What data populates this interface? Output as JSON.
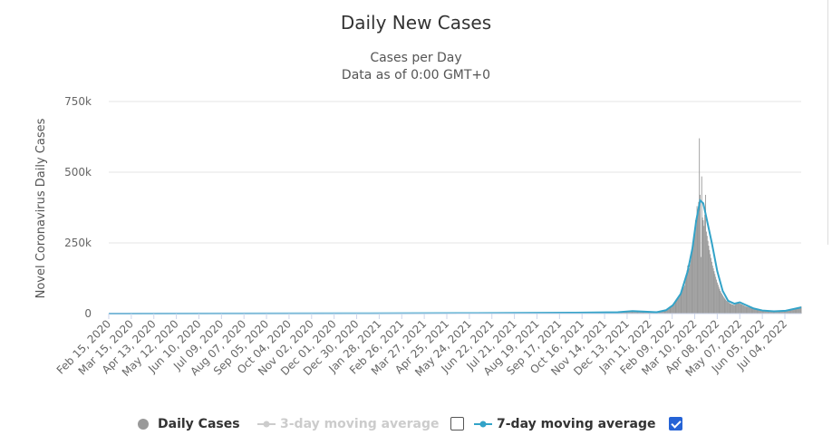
{
  "chart_data": {
    "type": "bar",
    "title": "Daily New Cases",
    "subtitle_lines": [
      "Cases per Day",
      "Data as of 0:00 GMT+0"
    ],
    "ylabel": "Novel Coronavirus Daily Cases",
    "xlabel": "",
    "ylim": [
      0,
      750000
    ],
    "y_ticks": [
      "0",
      "250k",
      "500k",
      "750k"
    ],
    "grid": true,
    "legend_position": "bottom-center",
    "x_tick_labels": [
      "Feb 15, 2020",
      "Mar 15, 2020",
      "Apr 13, 2020",
      "May 12, 2020",
      "Jun 10, 2020",
      "Jul 09, 2020",
      "Aug 07, 2020",
      "Sep 05, 2020",
      "Oct 04, 2020",
      "Nov 02, 2020",
      "Dec 01, 2020",
      "Dec 30, 2020",
      "Jan 28, 2021",
      "Feb 26, 2021",
      "Mar 27, 2021",
      "Apr 25, 2021",
      "May 24, 2021",
      "Jun 22, 2021",
      "Jul 21, 2021",
      "Aug 19, 2021",
      "Sep 17, 2021",
      "Oct 16, 2021",
      "Nov 14, 2021",
      "Dec 13, 2021",
      "Jan 11, 2022",
      "Feb 09, 2022",
      "Mar 10, 2022",
      "Apr 08, 2022",
      "May 07, 2022",
      "Jun 05, 2022",
      "Jul 04, 2022"
    ],
    "x_start": "Feb 15, 2020",
    "x_end": "Jul 25, 2022",
    "daily_cases": [
      {
        "date": "2020-02-15",
        "value": 0
      },
      {
        "date": "2020-08-01",
        "value": 500
      },
      {
        "date": "2021-01-15",
        "value": 1000
      },
      {
        "date": "2021-06-01",
        "value": 1500
      },
      {
        "date": "2021-12-01",
        "value": 4000
      },
      {
        "date": "2021-12-20",
        "value": 10000
      },
      {
        "date": "2022-01-05",
        "value": 8000
      },
      {
        "date": "2022-01-20",
        "value": 3000
      },
      {
        "date": "2022-02-01",
        "value": 10000
      },
      {
        "date": "2022-02-10",
        "value": 30000
      },
      {
        "date": "2022-02-18",
        "value": 60000
      },
      {
        "date": "2022-02-25",
        "value": 100000
      },
      {
        "date": "2022-03-01",
        "value": 170000
      },
      {
        "date": "2022-03-03",
        "value": 160000
      },
      {
        "date": "2022-03-05",
        "value": 190000
      },
      {
        "date": "2022-03-07",
        "value": 240000
      },
      {
        "date": "2022-03-09",
        "value": 265000
      },
      {
        "date": "2022-03-11",
        "value": 330000
      },
      {
        "date": "2022-03-12",
        "value": 315000
      },
      {
        "date": "2022-03-13",
        "value": 380000
      },
      {
        "date": "2022-03-14",
        "value": 360000
      },
      {
        "date": "2022-03-15",
        "value": 395000
      },
      {
        "date": "2022-03-16",
        "value": 620000
      },
      {
        "date": "2022-03-17",
        "value": 420000
      },
      {
        "date": "2022-03-18",
        "value": 200000
      },
      {
        "date": "2022-03-19",
        "value": 485000
      },
      {
        "date": "2022-03-20",
        "value": 340000
      },
      {
        "date": "2022-03-21",
        "value": 330000
      },
      {
        "date": "2022-03-22",
        "value": 310000
      },
      {
        "date": "2022-03-23",
        "value": 350000
      },
      {
        "date": "2022-03-24",
        "value": 420000
      },
      {
        "date": "2022-03-25",
        "value": 290000
      },
      {
        "date": "2022-03-26",
        "value": 275000
      },
      {
        "date": "2022-03-28",
        "value": 240000
      },
      {
        "date": "2022-03-30",
        "value": 210000
      },
      {
        "date": "2022-04-02",
        "value": 170000
      },
      {
        "date": "2022-04-05",
        "value": 140000
      },
      {
        "date": "2022-04-08",
        "value": 110000
      },
      {
        "date": "2022-04-12",
        "value": 80000
      },
      {
        "date": "2022-04-16",
        "value": 60000
      },
      {
        "date": "2022-04-20",
        "value": 45000
      },
      {
        "date": "2022-04-25",
        "value": 35000
      },
      {
        "date": "2022-04-30",
        "value": 30000
      },
      {
        "date": "2022-05-05",
        "value": 38000
      },
      {
        "date": "2022-05-10",
        "value": 32000
      },
      {
        "date": "2022-05-15",
        "value": 25000
      },
      {
        "date": "2022-05-22",
        "value": 20000
      },
      {
        "date": "2022-05-30",
        "value": 15000
      },
      {
        "date": "2022-06-07",
        "value": 11000
      },
      {
        "date": "2022-06-15",
        "value": 9000
      },
      {
        "date": "2022-06-23",
        "value": 8000
      },
      {
        "date": "2022-07-01",
        "value": 9000
      },
      {
        "date": "2022-07-08",
        "value": 12000
      },
      {
        "date": "2022-07-14",
        "value": 14000
      },
      {
        "date": "2022-07-20",
        "value": 20000
      },
      {
        "date": "2022-07-25",
        "value": 25000
      }
    ],
    "moving_average_7day": [
      {
        "date": "2020-02-15",
        "value": 0
      },
      {
        "date": "2020-08-01",
        "value": 500
      },
      {
        "date": "2021-01-15",
        "value": 1000
      },
      {
        "date": "2021-06-01",
        "value": 1500
      },
      {
        "date": "2021-10-01",
        "value": 3000
      },
      {
        "date": "2021-12-01",
        "value": 5000
      },
      {
        "date": "2021-12-20",
        "value": 9000
      },
      {
        "date": "2022-01-05",
        "value": 7000
      },
      {
        "date": "2022-01-20",
        "value": 5000
      },
      {
        "date": "2022-02-01",
        "value": 12000
      },
      {
        "date": "2022-02-10",
        "value": 30000
      },
      {
        "date": "2022-02-20",
        "value": 70000
      },
      {
        "date": "2022-03-01",
        "value": 150000
      },
      {
        "date": "2022-03-07",
        "value": 230000
      },
      {
        "date": "2022-03-12",
        "value": 330000
      },
      {
        "date": "2022-03-17",
        "value": 400000
      },
      {
        "date": "2022-03-21",
        "value": 390000
      },
      {
        "date": "2022-03-25",
        "value": 340000
      },
      {
        "date": "2022-04-01",
        "value": 250000
      },
      {
        "date": "2022-04-08",
        "value": 150000
      },
      {
        "date": "2022-04-15",
        "value": 80000
      },
      {
        "date": "2022-04-22",
        "value": 45000
      },
      {
        "date": "2022-04-30",
        "value": 35000
      },
      {
        "date": "2022-05-07",
        "value": 40000
      },
      {
        "date": "2022-05-15",
        "value": 30000
      },
      {
        "date": "2022-05-25",
        "value": 18000
      },
      {
        "date": "2022-06-05",
        "value": 11000
      },
      {
        "date": "2022-06-20",
        "value": 8000
      },
      {
        "date": "2022-07-05",
        "value": 10000
      },
      {
        "date": "2022-07-25",
        "value": 22000
      }
    ],
    "series": [
      {
        "name": "Daily Cases",
        "color": "#999999",
        "visible": true
      },
      {
        "name": "3-day moving average",
        "color": "#cccccc",
        "visible": false
      },
      {
        "name": "7-day moving average",
        "color": "#33a3c8",
        "visible": true
      }
    ]
  },
  "legend": {
    "daily": "Daily Cases",
    "ma3": "3-day moving average",
    "ma7": "7-day moving average",
    "ma3_checked": false,
    "ma7_checked": true
  },
  "colors": {
    "bars": "#999999",
    "ma7": "#33a3c8",
    "grid": "#e6e6e6",
    "checkbox": "#2563d6"
  }
}
